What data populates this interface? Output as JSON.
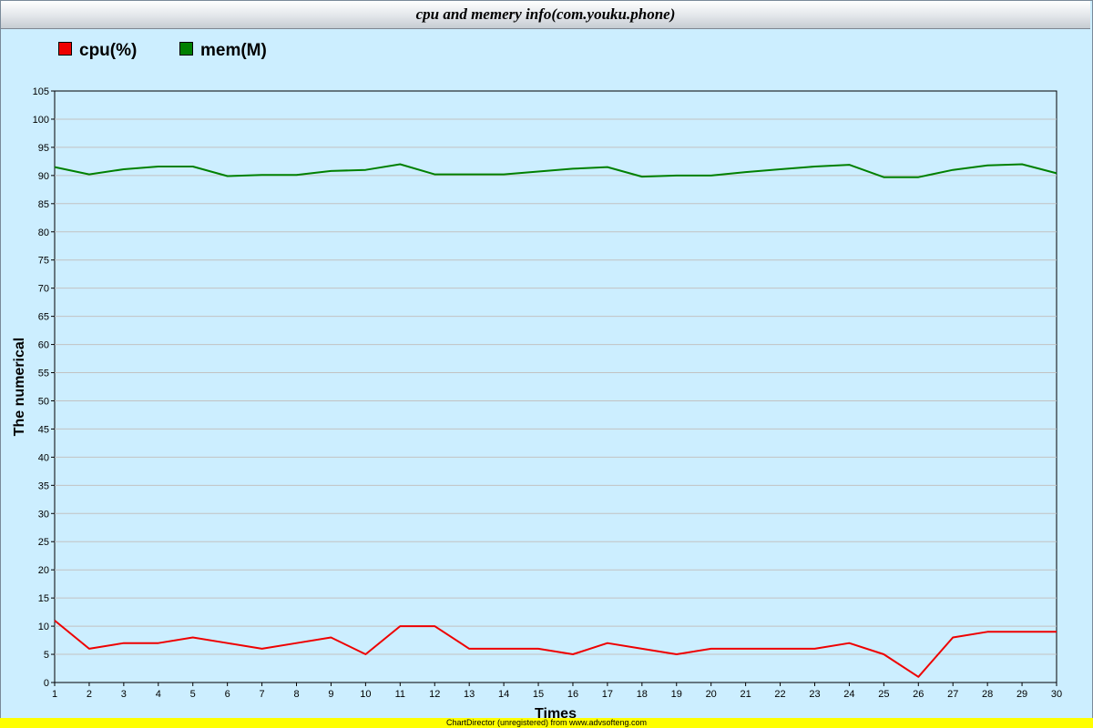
{
  "chart_data": {
    "type": "line",
    "title": "cpu and memery info(com.youku.phone)",
    "xlabel": "Times",
    "ylabel": "The numerical",
    "x": [
      1,
      2,
      3,
      4,
      5,
      6,
      7,
      8,
      9,
      10,
      11,
      12,
      13,
      14,
      15,
      16,
      17,
      18,
      19,
      20,
      21,
      22,
      23,
      24,
      25,
      26,
      27,
      28,
      29,
      30
    ],
    "ylim": [
      0,
      105
    ],
    "yticks": [
      0,
      5,
      10,
      15,
      20,
      25,
      30,
      35,
      40,
      45,
      50,
      55,
      60,
      65,
      70,
      75,
      80,
      85,
      90,
      95,
      100,
      105
    ],
    "grid": true,
    "legend_position": "top-left",
    "series": [
      {
        "name": "cpu(%)",
        "color": "#ee0000",
        "values": [
          11,
          6,
          7,
          7,
          8,
          7,
          6,
          7,
          8,
          5,
          10,
          10,
          6,
          6,
          6,
          5,
          7,
          6,
          5,
          6,
          6,
          6,
          6,
          7,
          5,
          1,
          8,
          9,
          9,
          9
        ]
      },
      {
        "name": "mem(M)",
        "color": "#008000",
        "values": [
          91.5,
          90.2,
          91.1,
          91.6,
          91.6,
          89.9,
          90.1,
          90.1,
          90.8,
          91,
          92,
          90.2,
          90.2,
          90.2,
          90.7,
          91.2,
          91.5,
          89.8,
          90,
          90,
          90.6,
          91.1,
          91.6,
          91.9,
          89.7,
          89.7,
          91,
          91.8,
          92,
          90.4
        ]
      }
    ]
  },
  "footer_text": "ChartDirector (unregistered) from www.advsofteng.com"
}
